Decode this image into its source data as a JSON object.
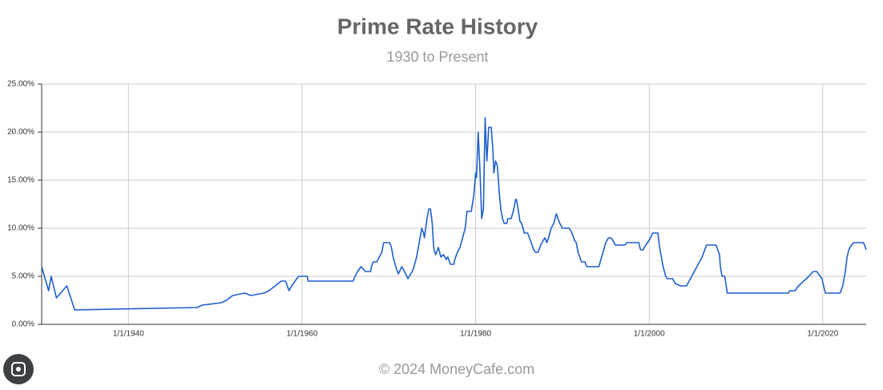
{
  "chart_data": {
    "type": "line",
    "title": "Prime Rate History",
    "subtitle": "1930 to Present",
    "footer": "© 2024 MoneyCafe.com",
    "xlim": [
      1930,
      2025
    ],
    "xticks": [
      {
        "value": 1940,
        "label": "1/1/1940"
      },
      {
        "value": 1960,
        "label": "1/1/1960"
      },
      {
        "value": 1980,
        "label": "1/1/1980"
      },
      {
        "value": 2000,
        "label": "1/1/2000"
      },
      {
        "value": 2020,
        "label": "1/1/2020"
      }
    ],
    "ylim": [
      0,
      25
    ],
    "yticks": [
      {
        "value": 0,
        "label": "0.00%"
      },
      {
        "value": 5,
        "label": "5.00%"
      },
      {
        "value": 10,
        "label": "10.00%"
      },
      {
        "value": 15,
        "label": "15.00%"
      },
      {
        "value": 20,
        "label": "20.00%"
      },
      {
        "value": 25,
        "label": "25.00%"
      }
    ],
    "grid": true,
    "series": [
      {
        "color": "#1f5fcc",
        "x": [
          1930.0,
          1930.8,
          1931.1,
          1931.7,
          1932.9,
          1933.8,
          1947.9,
          1948.5,
          1950.7,
          1951.3,
          1952.0,
          1953.4,
          1954.1,
          1955.6,
          1956.2,
          1956.9,
          1957.6,
          1958.1,
          1958.3,
          1958.5,
          1958.8,
          1959.2,
          1959.6,
          1960.6,
          1960.7,
          1965.9,
          1966.1,
          1966.4,
          1966.8,
          1967.3,
          1967.9,
          1968.0,
          1968.2,
          1968.6,
          1968.9,
          1969.2,
          1969.4,
          1970.1,
          1970.3,
          1970.5,
          1970.8,
          1971.1,
          1971.5,
          1971.8,
          1972.2,
          1972.7,
          1972.9,
          1973.2,
          1973.5,
          1973.8,
          1974.0,
          1974.1,
          1974.4,
          1974.6,
          1974.8,
          1975.0,
          1975.1,
          1975.2,
          1975.4,
          1975.7,
          1976.0,
          1976.3,
          1976.6,
          1976.8,
          1977.1,
          1977.5,
          1977.6,
          1977.9,
          1978.2,
          1978.5,
          1978.8,
          1979.0,
          1979.5,
          1979.8,
          1980.0,
          1980.1,
          1980.3,
          1980.5,
          1980.7,
          1980.9,
          1981.0,
          1981.1,
          1981.2,
          1981.3,
          1981.5,
          1981.8,
          1982.0,
          1982.1,
          1982.3,
          1982.5,
          1982.7,
          1982.9,
          1983.1,
          1983.3,
          1983.6,
          1983.7,
          1984.1,
          1984.4,
          1984.6,
          1984.7,
          1984.9,
          1985.1,
          1985.3,
          1985.6,
          1986.0,
          1986.2,
          1986.4,
          1986.7,
          1986.9,
          1987.2,
          1987.5,
          1987.8,
          1988.0,
          1988.2,
          1988.4,
          1988.7,
          1989.0,
          1989.3,
          1989.5,
          1989.7,
          1990.0,
          1990.8,
          1991.1,
          1991.4,
          1991.6,
          1991.8,
          1992.2,
          1992.6,
          1992.8,
          1994.2,
          1994.6,
          1995.0,
          1995.3,
          1995.6,
          1995.8,
          1996.1,
          1997.2,
          1997.4,
          1998.8,
          1999.0,
          1999.3,
          1999.6,
          2000.0,
          2000.4,
          2001.0,
          2001.2,
          2001.4,
          2001.6,
          2001.9,
          2002.1,
          2002.7,
          2003.0,
          2003.6,
          2004.3,
          2004.9,
          2005.5,
          2006.1,
          2006.6,
          2007.7,
          2008.1,
          2008.2,
          2008.4,
          2008.7,
          2009.0,
          2016.0,
          2016.2,
          2016.8,
          2017.2,
          2017.8,
          2018.4,
          2018.9,
          2019.3,
          2019.5,
          2019.9,
          2020.3,
          2022.0,
          2022.3,
          2022.6,
          2022.8,
          2023.0,
          2023.3,
          2023.6,
          2024.7,
          2025.0
        ],
        "values": [
          6.0,
          3.5,
          5.0,
          2.75,
          4.0,
          1.5,
          1.75,
          2.0,
          2.25,
          2.5,
          3.0,
          3.25,
          3.0,
          3.25,
          3.5,
          4.0,
          4.5,
          4.5,
          4.0,
          3.5,
          4.0,
          4.5,
          5.0,
          5.0,
          4.5,
          4.5,
          5.0,
          5.5,
          6.0,
          5.5,
          5.5,
          6.0,
          6.5,
          6.5,
          7.0,
          7.5,
          8.5,
          8.5,
          8.0,
          7.0,
          6.0,
          5.25,
          6.0,
          5.5,
          4.75,
          5.5,
          6.0,
          7.0,
          8.5,
          10.0,
          9.5,
          9.0,
          11.0,
          12.0,
          12.0,
          10.5,
          9.0,
          7.75,
          7.25,
          8.0,
          7.0,
          7.25,
          6.75,
          7.0,
          6.25,
          6.25,
          6.75,
          7.5,
          8.0,
          9.0,
          10.0,
          11.75,
          11.75,
          13.5,
          15.75,
          15.25,
          20.0,
          16.0,
          11.0,
          12.0,
          17.0,
          21.5,
          19.0,
          17.0,
          20.5,
          20.5,
          18.0,
          15.75,
          17.0,
          16.5,
          14.0,
          12.0,
          11.0,
          10.5,
          10.5,
          11.0,
          11.0,
          12.0,
          13.0,
          13.0,
          12.0,
          10.75,
          10.5,
          9.5,
          9.5,
          9.0,
          8.5,
          7.75,
          7.5,
          7.5,
          8.25,
          8.75,
          9.0,
          8.5,
          9.0,
          10.0,
          10.5,
          11.5,
          11.0,
          10.5,
          10.0,
          10.0,
          9.5,
          8.75,
          8.5,
          7.5,
          6.5,
          6.5,
          6.0,
          6.0,
          7.25,
          8.5,
          9.0,
          9.0,
          8.75,
          8.25,
          8.25,
          8.5,
          8.5,
          7.75,
          7.75,
          8.25,
          8.75,
          9.5,
          9.5,
          8.0,
          7.0,
          6.0,
          5.0,
          4.75,
          4.75,
          4.25,
          4.0,
          4.0,
          5.0,
          6.0,
          7.0,
          8.25,
          8.25,
          7.25,
          6.0,
          5.0,
          5.0,
          3.25,
          3.25,
          3.5,
          3.5,
          4.0,
          4.5,
          5.0,
          5.5,
          5.5,
          5.25,
          4.75,
          3.25,
          3.25,
          4.0,
          5.5,
          7.0,
          7.75,
          8.25,
          8.5,
          8.5,
          7.75
        ]
      }
    ]
  }
}
